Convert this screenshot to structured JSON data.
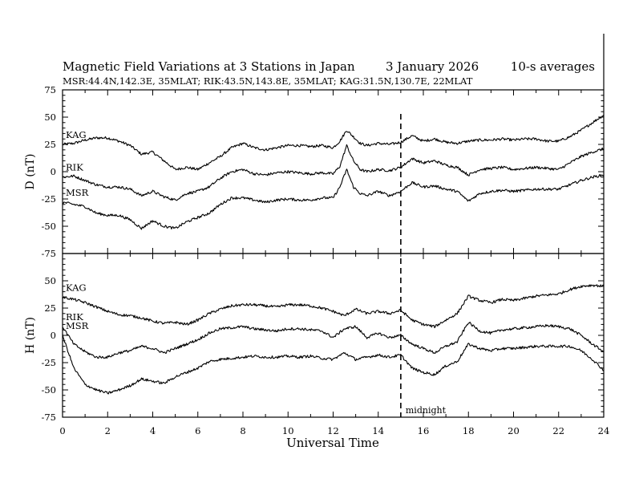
{
  "chart_data": {
    "type": "line",
    "title_left": "Magnetic Field Variations at 3 Stations in Japan",
    "title_date": "3   January  2026",
    "title_right": "10-s averages",
    "subtitle": "MSR:44.4N,142.3E, 35MLAT;  RIK:43.5N,143.8E, 35MLAT;  KAG:31.5N,130.7E, 22MLAT",
    "xlabel": "Universal Time",
    "xlim": [
      0,
      24
    ],
    "xticks": [
      "0",
      "2",
      "4",
      "6",
      "8",
      "10",
      "12",
      "14",
      "16",
      "18",
      "20",
      "22",
      "24"
    ],
    "annotation": {
      "x": 15,
      "label": "midnight"
    },
    "panels": [
      {
        "name": "D",
        "ylabel": "D (nT)",
        "ylim": [
          -75,
          75
        ],
        "yticks": [
          "75",
          "50",
          "25",
          "0",
          "-25",
          "-50",
          "-75"
        ],
        "series": [
          {
            "name": "KAG",
            "x": [
              0,
              0.5,
              1,
              1.5,
              2,
              2.5,
              3,
              3.5,
              4,
              4.5,
              5,
              5.5,
              6,
              6.5,
              7,
              7.5,
              8,
              8.5,
              9,
              9.5,
              10,
              10.5,
              11,
              11.5,
              12,
              12.3,
              12.6,
              12.9,
              13.2,
              13.5,
              14,
              14.5,
              15,
              15.5,
              16,
              16.5,
              17,
              17.5,
              18,
              18.5,
              19,
              19.5,
              20,
              20.5,
              21,
              21.5,
              22,
              22.5,
              23,
              23.5,
              24
            ],
            "y": [
              25,
              26,
              29,
              31,
              31,
              28,
              24,
              16,
              18,
              10,
              2,
              4,
              2,
              8,
              14,
              22,
              26,
              22,
              20,
              22,
              24,
              24,
              23,
              24,
              22,
              28,
              38,
              32,
              26,
              24,
              26,
              25,
              27,
              33,
              28,
              30,
              27,
              26,
              28,
              29,
              29,
              30,
              29,
              30,
              30,
              28,
              28,
              32,
              38,
              45,
              52
            ]
          },
          {
            "name": "RIK",
            "x": [
              0,
              0.5,
              1,
              1.5,
              2,
              2.5,
              3,
              3.5,
              4,
              4.5,
              5,
              5.5,
              6,
              6.5,
              7,
              7.5,
              8,
              8.5,
              9,
              9.5,
              10,
              10.5,
              11,
              11.5,
              12,
              12.3,
              12.6,
              12.9,
              13.2,
              13.5,
              14,
              14.5,
              15,
              15.5,
              16,
              16.5,
              17,
              17.5,
              18,
              18.5,
              19,
              19.5,
              20,
              20.5,
              21,
              21.5,
              22,
              22.5,
              23,
              23.5,
              24
            ],
            "y": [
              -5,
              -4,
              -8,
              -12,
              -14,
              -14,
              -16,
              -22,
              -18,
              -23,
              -26,
              -20,
              -18,
              -14,
              -6,
              0,
              2,
              -2,
              -3,
              -1,
              0,
              -1,
              -2,
              -1,
              -2,
              5,
              24,
              10,
              2,
              0,
              2,
              1,
              4,
              12,
              8,
              10,
              6,
              4,
              -3,
              2,
              3,
              4,
              2,
              3,
              4,
              3,
              2,
              8,
              14,
              18,
              21
            ]
          },
          {
            "name": "MSR",
            "x": [
              0,
              0.5,
              1,
              1.5,
              2,
              2.5,
              3,
              3.5,
              4,
              4.5,
              5,
              5.5,
              6,
              6.5,
              7,
              7.5,
              8,
              8.5,
              9,
              9.5,
              10,
              10.5,
              11,
              11.5,
              12,
              12.3,
              12.6,
              12.9,
              13.2,
              13.5,
              14,
              14.5,
              15,
              15.5,
              16,
              16.5,
              17,
              17.5,
              18,
              18.5,
              19,
              19.5,
              20,
              20.5,
              21,
              21.5,
              22,
              22.5,
              23,
              23.5,
              24
            ],
            "y": [
              -28,
              -30,
              -32,
              -38,
              -40,
              -40,
              -44,
              -52,
              -45,
              -50,
              -52,
              -46,
              -42,
              -38,
              -30,
              -24,
              -24,
              -26,
              -28,
              -26,
              -25,
              -26,
              -26,
              -24,
              -24,
              -14,
              2,
              -14,
              -20,
              -22,
              -18,
              -22,
              -18,
              -10,
              -14,
              -13,
              -16,
              -18,
              -27,
              -20,
              -18,
              -17,
              -18,
              -17,
              -16,
              -16,
              -16,
              -12,
              -8,
              -5,
              -3
            ]
          }
        ]
      },
      {
        "name": "H",
        "ylabel": "H (nT)",
        "ylim": [
          -75,
          75
        ],
        "yticks": [
          "75",
          "50",
          "25",
          "0",
          "-25",
          "-50",
          "-75"
        ],
        "series": [
          {
            "name": "KAG",
            "x": [
              0,
              0.5,
              1,
              1.5,
              2,
              2.5,
              3,
              3.5,
              4,
              4.5,
              5,
              5.5,
              6,
              6.5,
              7,
              7.5,
              8,
              8.5,
              9,
              9.5,
              10,
              10.5,
              11,
              11.5,
              12,
              12.5,
              13,
              13.5,
              14,
              14.5,
              15,
              15.5,
              16,
              16.5,
              17,
              17.5,
              18,
              18.5,
              19,
              19.5,
              20,
              20.5,
              21,
              21.5,
              22,
              22.5,
              23,
              23.5,
              24
            ],
            "y": [
              35,
              33,
              30,
              26,
              22,
              19,
              18,
              16,
              13,
              11,
              12,
              10,
              14,
              20,
              24,
              27,
              28,
              28,
              27,
              26,
              28,
              28,
              27,
              25,
              22,
              18,
              24,
              20,
              22,
              20,
              23,
              14,
              10,
              8,
              14,
              20,
              36,
              32,
              30,
              33,
              32,
              34,
              36,
              37,
              38,
              42,
              45,
              46,
              45
            ]
          },
          {
            "name": "RIK",
            "x": [
              0,
              0.5,
              1,
              1.5,
              2,
              2.5,
              3,
              3.5,
              4,
              4.5,
              5,
              5.5,
              6,
              6.5,
              7,
              7.5,
              8,
              8.5,
              9,
              9.5,
              10,
              10.5,
              11,
              11.5,
              12,
              12.5,
              13,
              13.5,
              14,
              14.5,
              15,
              15.5,
              16,
              16.5,
              17,
              17.5,
              18,
              18.5,
              19,
              19.5,
              20,
              20.5,
              21,
              21.5,
              22,
              22.5,
              23,
              23.5,
              24
            ],
            "y": [
              8,
              -8,
              -15,
              -20,
              -20,
              -16,
              -14,
              -10,
              -12,
              -16,
              -12,
              -8,
              -4,
              2,
              6,
              7,
              8,
              6,
              5,
              4,
              6,
              6,
              5,
              4,
              -2,
              6,
              8,
              -2,
              2,
              -2,
              0,
              -8,
              -12,
              -16,
              -10,
              -6,
              12,
              4,
              2,
              5,
              6,
              7,
              8,
              9,
              8,
              6,
              0,
              -8,
              -15
            ]
          },
          {
            "name": "MSR",
            "x": [
              0,
              0.5,
              1,
              1.5,
              2,
              2.5,
              3,
              3.5,
              4,
              4.5,
              5,
              5.5,
              6,
              6.5,
              7,
              7.5,
              8,
              8.5,
              9,
              9.5,
              10,
              10.5,
              11,
              11.5,
              12,
              12.5,
              13,
              13.5,
              14,
              14.5,
              15,
              15.5,
              16,
              16.5,
              17,
              17.5,
              18,
              18.5,
              19,
              19.5,
              20,
              20.5,
              21,
              21.5,
              22,
              22.5,
              23,
              23.5,
              24
            ],
            "y": [
              0,
              -30,
              -45,
              -50,
              -53,
              -50,
              -46,
              -40,
              -42,
              -44,
              -38,
              -34,
              -30,
              -24,
              -22,
              -21,
              -20,
              -19,
              -20,
              -20,
              -19,
              -20,
              -19,
              -21,
              -22,
              -16,
              -22,
              -20,
              -18,
              -20,
              -18,
              -30,
              -34,
              -36,
              -28,
              -24,
              -8,
              -12,
              -14,
              -12,
              -12,
              -11,
              -10,
              -10,
              -10,
              -10,
              -14,
              -22,
              -32
            ]
          }
        ]
      }
    ]
  }
}
